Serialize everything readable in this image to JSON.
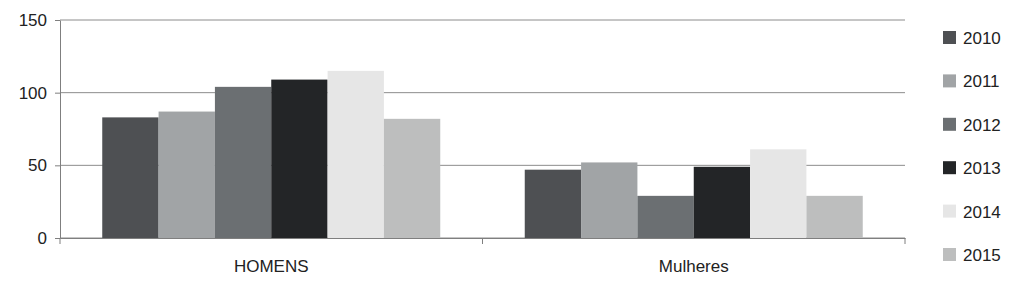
{
  "chart_data": {
    "type": "bar",
    "categories": [
      "HOMENS",
      "Mulheres"
    ],
    "series": [
      {
        "name": "2010",
        "color": "#4e5053",
        "values": [
          83,
          47
        ]
      },
      {
        "name": "2011",
        "color": "#a1a4a6",
        "values": [
          87,
          52
        ]
      },
      {
        "name": "2012",
        "color": "#6b6f72",
        "values": [
          104,
          29
        ]
      },
      {
        "name": "2013",
        "color": "#232527",
        "values": [
          109,
          49
        ]
      },
      {
        "name": "2014",
        "color": "#e6e6e6",
        "values": [
          115,
          61
        ]
      },
      {
        "name": "2015",
        "color": "#bdbebe",
        "values": [
          82,
          29
        ]
      }
    ],
    "ylim": [
      0,
      150
    ],
    "yticks": [
      0,
      50,
      100,
      150
    ],
    "grid": true,
    "legend": "right"
  }
}
